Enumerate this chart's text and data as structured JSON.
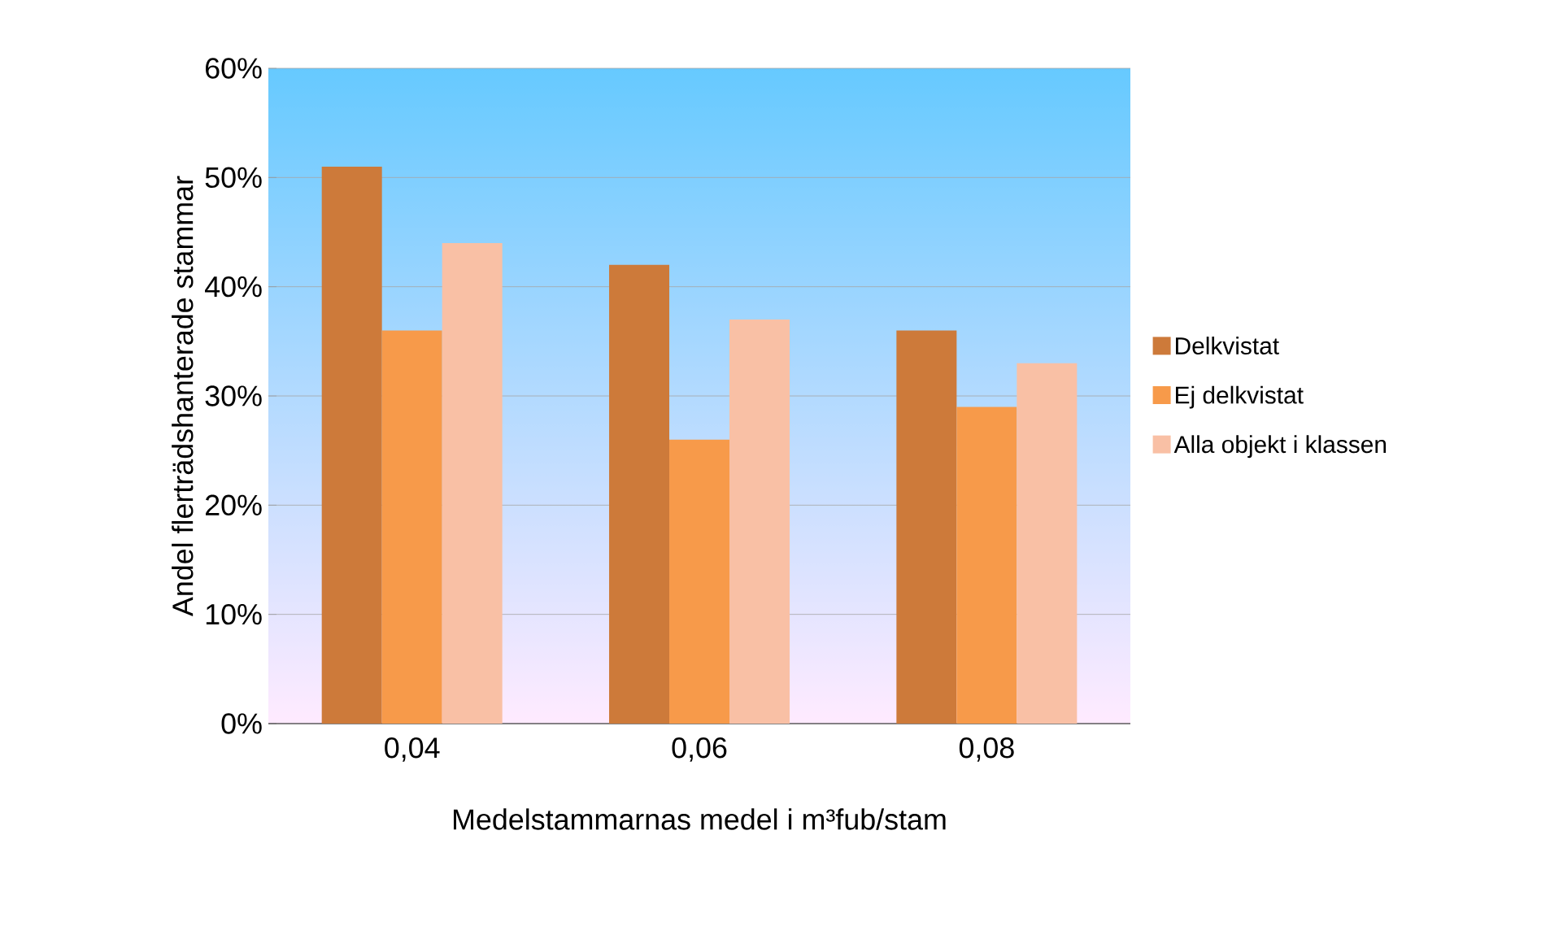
{
  "chart_data": {
    "type": "bar",
    "xlabel": "Medelstammarnas medel i m³fub/stam",
    "ylabel": "Andel flerträdshanterade stammar",
    "categories": [
      "0,04",
      "0,06",
      "0,08"
    ],
    "series": [
      {
        "name": "Delkvistat",
        "color": "#cd7a3a",
        "values": [
          51,
          42,
          36
        ]
      },
      {
        "name": "Ej delkvistat",
        "color": "#f79a4a",
        "values": [
          36,
          26,
          29
        ]
      },
      {
        "name": "Alla objekt i klassen",
        "color": "#f9c0a5",
        "values": [
          44,
          37,
          33
        ]
      }
    ],
    "ylim": [
      0,
      60
    ],
    "yticks": [
      {
        "value": 0,
        "label": "0%"
      },
      {
        "value": 10,
        "label": "10%"
      },
      {
        "value": 20,
        "label": "20%"
      },
      {
        "value": 30,
        "label": "30%"
      },
      {
        "value": 40,
        "label": "40%"
      },
      {
        "value": 50,
        "label": "50%"
      },
      {
        "value": 60,
        "label": "60%"
      }
    ],
    "grid": "y",
    "legend": "right"
  }
}
